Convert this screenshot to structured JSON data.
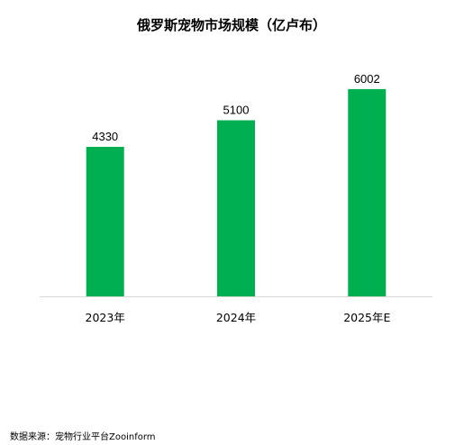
{
  "chart_data": {
    "type": "bar",
    "title": "俄罗斯宠物市场规模（亿卢布）",
    "categories": [
      "2023年",
      "2024年",
      "2025年E"
    ],
    "values": [
      4330,
      5100,
      6002
    ],
    "data_labels": [
      "4330",
      "5100",
      "6002"
    ],
    "xlabel": "",
    "ylabel": "",
    "ylim": [
      0,
      6600
    ],
    "grid": false,
    "legend": "none",
    "bar_color": "#00B050",
    "axis_color": "#D9D9D9"
  },
  "source": "数据来源：宠物行业平台Zooinform"
}
